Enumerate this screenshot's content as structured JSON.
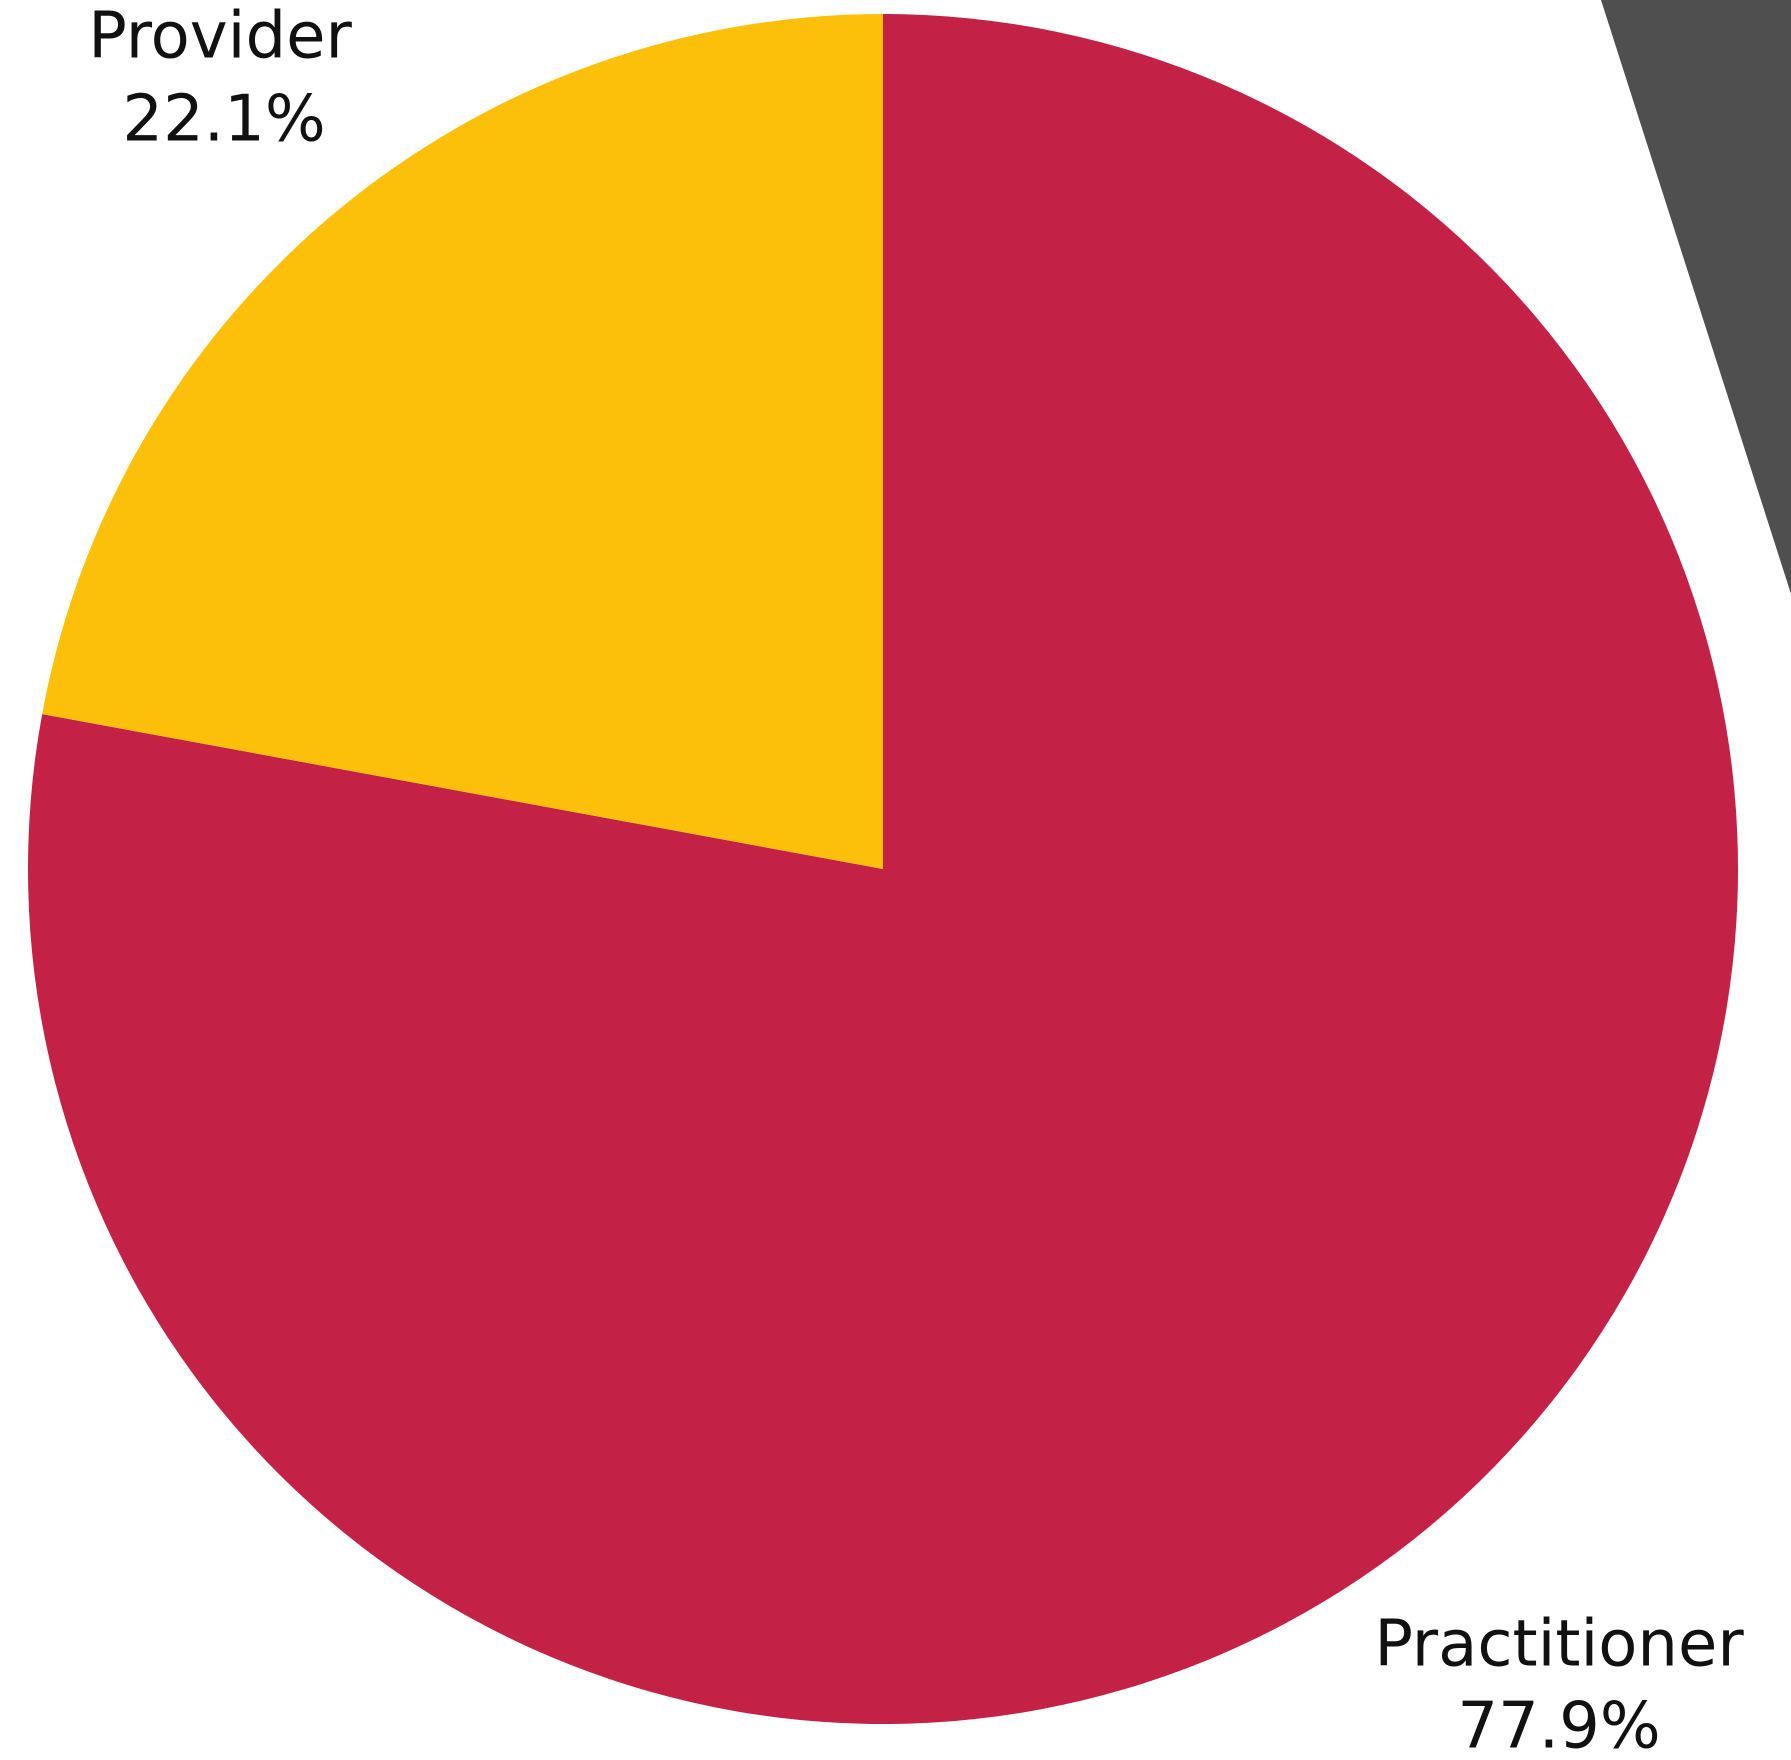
{
  "chart_data": {
    "type": "pie",
    "categories": [
      "Practitioner",
      "Provider"
    ],
    "values": [
      77.9,
      22.1
    ],
    "value_labels": [
      "77.9%",
      "22.1%"
    ],
    "colors": [
      "#c42146",
      "#fdc00a"
    ]
  }
}
